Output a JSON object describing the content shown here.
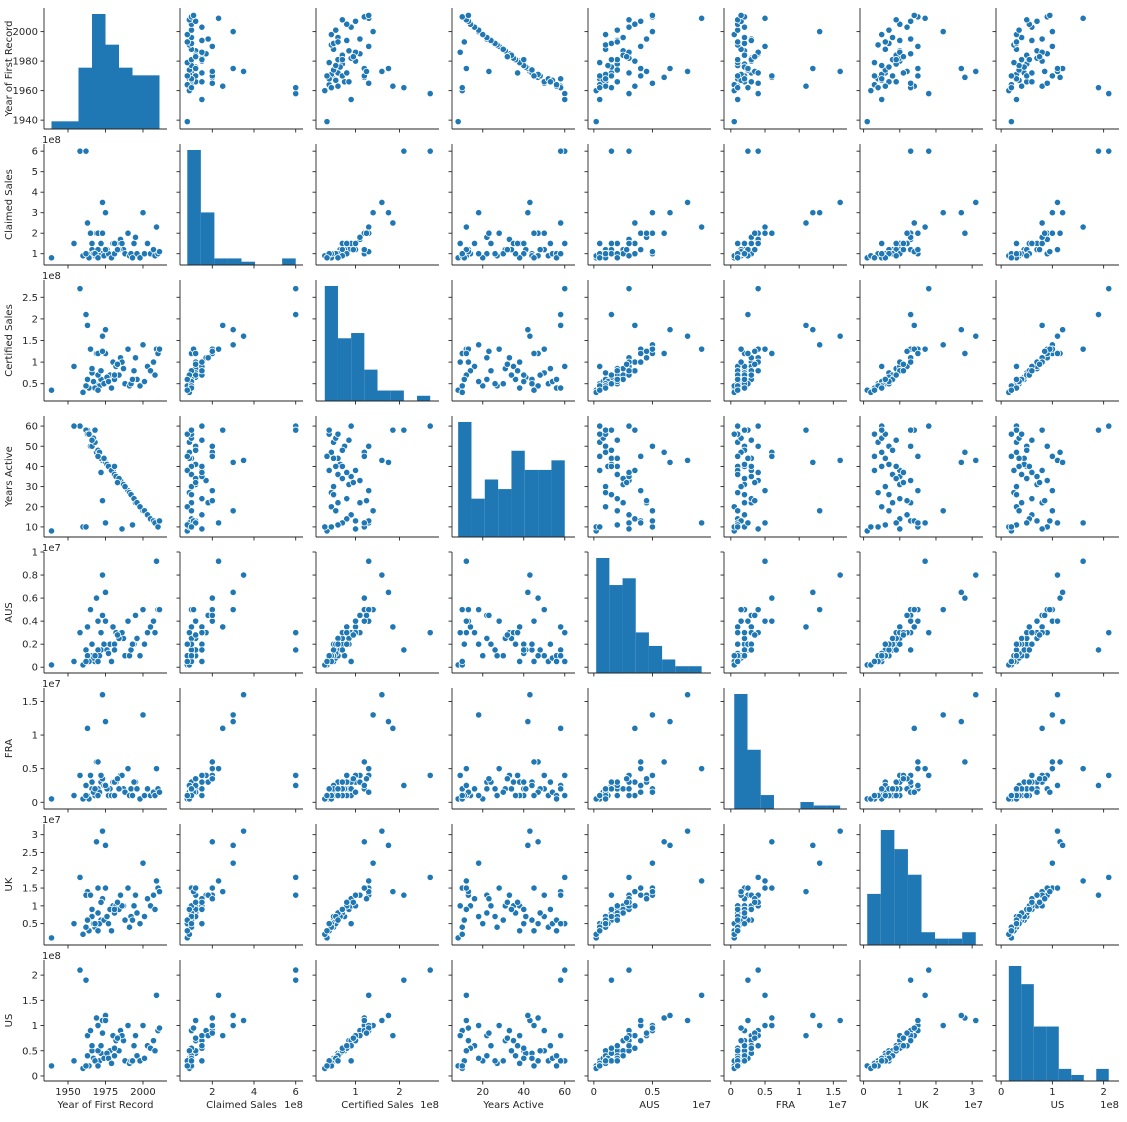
{
  "chart_data": {
    "type": "scatter",
    "variables": [
      {
        "key": "year",
        "label": "Year of First Record",
        "ticks": [
          1950,
          1975,
          2000
        ],
        "yticks": [
          1940,
          1960,
          1980,
          2000
        ],
        "range": [
          1934,
          2016
        ],
        "sci": ""
      },
      {
        "key": "claimed",
        "label": "Claimed Sales",
        "ticks": [
          2,
          4,
          6
        ],
        "yticks": [
          1,
          2,
          3,
          4,
          5,
          6
        ],
        "range": [
          0.45,
          6.35
        ],
        "sci": "1e8"
      },
      {
        "key": "certified",
        "label": "Certified Sales",
        "ticks": [
          1,
          2
        ],
        "yticks": [
          0.5,
          1.0,
          1.5,
          2.0,
          2.5
        ],
        "range": [
          0.1,
          2.9
        ],
        "sci": "1e8"
      },
      {
        "key": "years",
        "label": "Years Active",
        "ticks": [
          20,
          40,
          60
        ],
        "yticks": [
          10,
          20,
          30,
          40,
          50,
          60
        ],
        "range": [
          5,
          65
        ],
        "sci": ""
      },
      {
        "key": "aus",
        "label": "AUS",
        "ticks": [
          0.0,
          0.5
        ],
        "yticks": [
          0.0,
          0.2,
          0.4,
          0.6,
          0.8,
          1.0
        ],
        "range": [
          -0.05,
          1.0
        ],
        "sci": "1e7"
      },
      {
        "key": "fra",
        "label": "FRA",
        "ticks": [
          0.0,
          0.5,
          1.0,
          1.5
        ],
        "yticks": [
          0.0,
          0.5,
          1.0,
          1.5
        ],
        "range": [
          -0.1,
          1.7
        ],
        "sci": "1e7"
      },
      {
        "key": "uk",
        "label": "UK",
        "ticks": [
          0,
          1,
          2,
          3
        ],
        "yticks": [
          0.5,
          1.0,
          1.5,
          2.0,
          2.5,
          3.0
        ],
        "range": [
          -0.1,
          3.3
        ],
        "sci": "1e7"
      },
      {
        "key": "us",
        "label": "US",
        "ticks": [
          0,
          1,
          2
        ],
        "yticks": [
          0.0,
          0.5,
          1.0,
          1.5,
          2.0
        ],
        "range": [
          -0.1,
          2.3
        ],
        "sci": "1e8"
      }
    ],
    "rows": [
      [
        1963,
        2.5,
        1.85,
        58,
        0.35,
        1.1,
        1.4,
        0.8
      ],
      [
        1958,
        6.0,
        2.7,
        60,
        0.3,
        0.4,
        1.8,
        2.1
      ],
      [
        1962,
        6.0,
        2.1,
        58,
        0.15,
        0.25,
        1.3,
        1.9
      ],
      [
        2000,
        3.0,
        1.4,
        18,
        0.5,
        1.3,
        2.2,
        1.0
      ],
      [
        1969,
        2.0,
        1.2,
        47,
        0.6,
        0.6,
        2.8,
        1.15
      ],
      [
        1973,
        3.5,
        1.6,
        43,
        0.8,
        1.6,
        3.1,
        1.1
      ],
      [
        1975,
        3.0,
        1.75,
        42,
        0.65,
        1.2,
        2.7,
        1.2
      ],
      [
        1954,
        1.5,
        0.9,
        60,
        0.05,
        0.1,
        0.5,
        0.3
      ],
      [
        1939,
        0.8,
        0.35,
        8,
        0.02,
        0.05,
        0.1,
        0.2
      ],
      [
        2009,
        2.3,
        1.3,
        12,
        0.92,
        0.5,
        1.7,
        1.6
      ],
      [
        1965,
        2.0,
        1.3,
        50,
        0.5,
        0.4,
        1.3,
        0.9
      ],
      [
        1970,
        2.0,
        1.2,
        45,
        0.4,
        0.6,
        1.5,
        1.0
      ],
      [
        1980,
        1.5,
        1.0,
        38,
        0.35,
        0.3,
        1.0,
        0.8
      ],
      [
        1985,
        1.7,
        1.1,
        33,
        0.3,
        0.4,
        1.3,
        0.9
      ],
      [
        1990,
        2.0,
        1.3,
        28,
        0.4,
        0.5,
        1.5,
        1.0
      ],
      [
        1995,
        1.8,
        1.1,
        22,
        0.45,
        0.3,
        1.3,
        0.8
      ],
      [
        1987,
        1.2,
        0.85,
        31,
        0.25,
        0.2,
        1.0,
        0.7
      ],
      [
        1978,
        1.0,
        0.7,
        40,
        0.2,
        0.2,
        0.9,
        0.5
      ],
      [
        1972,
        1.0,
        0.6,
        44,
        0.15,
        0.3,
        0.6,
        0.45
      ],
      [
        1966,
        1.2,
        0.75,
        50,
        0.1,
        0.2,
        0.7,
        0.5
      ],
      [
        1968,
        0.9,
        0.5,
        52,
        0.05,
        0.1,
        0.4,
        0.3
      ],
      [
        1967,
        1.0,
        0.55,
        54,
        0.08,
        0.15,
        0.5,
        0.35
      ],
      [
        1963,
        1.0,
        0.6,
        56,
        0.1,
        0.1,
        0.6,
        0.4
      ],
      [
        1964,
        0.8,
        0.4,
        56,
        0.05,
        0.05,
        0.3,
        0.2
      ],
      [
        1966,
        1.5,
        0.85,
        53,
        0.2,
        0.3,
        0.9,
        0.6
      ],
      [
        1970,
        1.2,
        0.7,
        48,
        0.15,
        0.2,
        0.8,
        0.5
      ],
      [
        1971,
        0.9,
        0.45,
        47,
        0.1,
        0.15,
        0.5,
        0.3
      ],
      [
        1974,
        0.9,
        0.5,
        44,
        0.2,
        0.25,
        0.6,
        0.35
      ],
      [
        1976,
        1.2,
        0.65,
        41,
        0.15,
        0.2,
        0.7,
        0.45
      ],
      [
        1977,
        1.0,
        0.55,
        40,
        0.12,
        0.1,
        0.5,
        0.35
      ],
      [
        1979,
        0.8,
        0.4,
        38,
        0.05,
        0.1,
        0.3,
        0.25
      ],
      [
        1981,
        1.0,
        0.6,
        36,
        0.2,
        0.1,
        0.8,
        0.4
      ],
      [
        1982,
        1.5,
        0.9,
        35,
        0.3,
        0.3,
        1.0,
        0.7
      ],
      [
        1984,
        1.2,
        0.7,
        34,
        0.25,
        0.2,
        0.9,
        0.5
      ],
      [
        1988,
        1.0,
        0.5,
        30,
        0.1,
        0.15,
        0.6,
        0.3
      ],
      [
        1991,
        0.9,
        0.45,
        27,
        0.1,
        0.1,
        0.4,
        0.25
      ],
      [
        1992,
        1.0,
        0.5,
        26,
        0.15,
        0.2,
        0.7,
        0.3
      ],
      [
        1994,
        1.5,
        0.8,
        24,
        0.2,
        0.3,
        1.0,
        0.6
      ],
      [
        1996,
        1.0,
        0.6,
        22,
        0.25,
        0.2,
        0.8,
        0.4
      ],
      [
        1998,
        0.8,
        0.45,
        20,
        0.1,
        0.05,
        0.5,
        0.3
      ],
      [
        2001,
        1.0,
        0.55,
        18,
        0.2,
        0.1,
        0.7,
        0.35
      ],
      [
        2003,
        1.5,
        0.9,
        16,
        0.3,
        0.2,
        1.2,
        0.6
      ],
      [
        2005,
        1.0,
        0.8,
        14,
        0.35,
        0.1,
        1.0,
        0.55
      ],
      [
        2007,
        1.2,
        1.0,
        13,
        0.4,
        0.15,
        1.3,
        0.7
      ],
      [
        2008,
        0.9,
        0.7,
        12,
        0.3,
        0.1,
        0.9,
        0.5
      ],
      [
        2010,
        1.0,
        1.2,
        10,
        0.5,
        0.2,
        1.5,
        0.9
      ],
      [
        2011,
        1.1,
        1.3,
        13,
        0.5,
        0.15,
        1.4,
        0.95
      ],
      [
        1960,
        0.9,
        0.3,
        10,
        0.02,
        0.05,
        0.2,
        0.15
      ],
      [
        1986,
        1.5,
        1.0,
        9,
        0.3,
        0.4,
        1.0,
        0.8
      ],
      [
        1993,
        0.8,
        0.6,
        11,
        0.2,
        0.1,
        0.6,
        0.3
      ],
      [
        1975,
        1.2,
        1.2,
        12,
        0.4,
        0.25,
        1.5,
        1.1
      ],
      [
        1973,
        2.0,
        1.25,
        23,
        0.45,
        0.35,
        1.2,
        0.85
      ],
      [
        1962,
        1.0,
        0.45,
        10,
        0.05,
        0.1,
        0.4,
        0.2
      ],
      [
        1981,
        1.5,
        0.7,
        40,
        0.15,
        0.3,
        0.9,
        0.55
      ],
      [
        1972,
        1.5,
        0.8,
        37,
        0.3,
        0.4,
        1.1,
        0.6
      ],
      [
        1968,
        1.0,
        0.4,
        58,
        0.1,
        0.2,
        0.5,
        0.3
      ],
      [
        1983,
        1.2,
        0.95,
        32,
        0.28,
        0.35,
        1.1,
        0.75
      ],
      [
        1970,
        0.8,
        0.35,
        45,
        0.05,
        0.1,
        0.3,
        0.2
      ]
    ]
  }
}
